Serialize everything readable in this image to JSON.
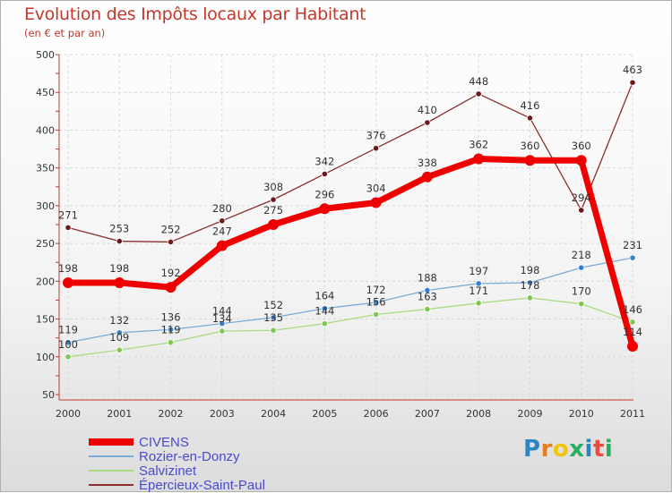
{
  "title": "Evolution des Impôts locaux par Habitant",
  "subtitle": "(en € et par an)",
  "brand": {
    "text": [
      "P",
      "r",
      "o",
      "x",
      "i",
      "t",
      "i"
    ],
    "colors": [
      "#2e86c1",
      "#e67e22",
      "#f1c40f",
      "#27ae60",
      "#2e86c1",
      "#e74c3c",
      "#27ae60"
    ]
  },
  "chart_data": {
    "type": "line",
    "title": "Evolution des Impôts locaux par Habitant",
    "subtitle": "(en € et par an)",
    "x": [
      "2000",
      "2001",
      "2002",
      "2003",
      "2004",
      "2005",
      "2006",
      "2007",
      "2008",
      "2009",
      "2010",
      "2011"
    ],
    "ylim": [
      50,
      500
    ],
    "yticks": [
      "50",
      "100",
      "150",
      "200",
      "250",
      "300",
      "350",
      "400",
      "450",
      "500"
    ],
    "legend_position": "bottom-left",
    "series": [
      {
        "name": "CIVENS",
        "color": "#ee0000",
        "values": [
          198,
          198,
          192,
          247,
          275,
          296,
          304,
          338,
          362,
          360,
          360,
          114
        ],
        "labels": [
          "198",
          "198",
          "192",
          "247",
          "275",
          "296",
          "304",
          "338",
          "362",
          "360",
          "360",
          "114"
        ]
      },
      {
        "name": "Rozier-en-Donzy",
        "color": "#7aaad8",
        "marker": "#3a7fc8",
        "values": [
          119,
          132,
          136,
          144,
          152,
          164,
          172,
          188,
          197,
          198,
          218,
          231
        ],
        "labels": [
          "119",
          "132",
          "136",
          "144",
          "152",
          "164",
          "172",
          "188",
          "197",
          "198",
          "218",
          "231"
        ]
      },
      {
        "name": "Salvizinet",
        "color": "#a8dc82",
        "marker": "#7ec850",
        "values": [
          100,
          109,
          119,
          134,
          135,
          144,
          156,
          163,
          171,
          178,
          170,
          146
        ],
        "labels": [
          "100",
          "109",
          "119",
          "134",
          "135",
          "144",
          "156",
          "163",
          "171",
          "178",
          "170",
          "146"
        ]
      },
      {
        "name": "Épercieux-Saint-Paul",
        "color": "#8b2e2e",
        "marker": "#6b1a1a",
        "values": [
          271,
          253,
          252,
          280,
          308,
          342,
          376,
          410,
          448,
          416,
          294,
          463
        ],
        "labels": [
          "271",
          "253",
          "252",
          "280",
          "308",
          "342",
          "376",
          "410",
          "448",
          "416",
          "294",
          "463"
        ]
      }
    ]
  }
}
